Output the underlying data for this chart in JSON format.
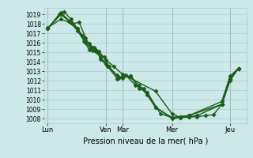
{
  "xlabel": "Pression niveau de la mer( hPa )",
  "ylim": [
    1007.5,
    1019.7
  ],
  "yticks": [
    1008,
    1009,
    1010,
    1011,
    1012,
    1013,
    1014,
    1015,
    1016,
    1017,
    1018,
    1019
  ],
  "background_color": "#cce8e8",
  "grid_color": "#aacccc",
  "line_color": "#1a5c1a",
  "x_day_labels": [
    "Lun",
    "Ven",
    "Mar",
    "Mer",
    "Jeu"
  ],
  "x_day_positions": [
    0.0,
    3.5,
    4.5,
    7.5,
    11.0
  ],
  "series": [
    [
      1017.5,
      1019.0,
      1018.3,
      1017.3,
      1016.2,
      1015.3,
      1015.1,
      1014.5,
      1013.8,
      1012.2,
      1012.4,
      1012.5,
      1011.5,
      1010.5,
      1009.2,
      1008.0,
      1008.1,
      1008.15,
      1008.2,
      1008.3,
      1008.4,
      1009.5,
      1012.2,
      1013.3
    ],
    [
      1017.5,
      1019.2,
      1018.0,
      1018.2,
      1016.5,
      1015.5,
      1015.3,
      1014.3,
      1013.5,
      1012.6,
      1012.3,
      1012.5,
      1011.2,
      1010.8,
      1008.5,
      1008.1,
      1008.2,
      1008.3,
      1009.5,
      1012.2,
      1013.3
    ],
    [
      1017.6,
      1018.5,
      1018.1,
      1017.5,
      1016.0,
      1015.2,
      1015.0,
      1014.5,
      1013.5,
      1012.3,
      1012.6,
      1011.5,
      1011.2,
      1009.2,
      1008.1,
      1008.2,
      1008.3,
      1009.8,
      1012.5,
      1013.3
    ],
    [
      1017.5,
      1019.0,
      1019.3,
      1018.5,
      1017.5,
      1016.8,
      1015.9,
      1015.5,
      1015.1,
      1014.2,
      1013.5,
      1012.7,
      1010.9,
      1008.5,
      1008.1,
      1008.2,
      1008.3,
      1009.5,
      1012.0,
      1013.3
    ]
  ],
  "x_positions": [
    [
      0.0,
      0.8,
      1.3,
      1.8,
      2.2,
      2.5,
      2.9,
      3.2,
      3.5,
      4.2,
      4.5,
      5.0,
      5.5,
      6.0,
      6.5,
      7.5,
      8.0,
      8.5,
      9.0,
      9.5,
      10.0,
      10.5,
      11.0,
      11.5
    ],
    [
      0.0,
      0.8,
      1.5,
      1.9,
      2.3,
      2.6,
      2.9,
      3.2,
      3.6,
      4.2,
      4.5,
      5.0,
      5.5,
      6.0,
      6.8,
      7.5,
      8.0,
      8.5,
      10.5,
      11.0,
      11.5
    ],
    [
      0.0,
      0.8,
      1.4,
      1.8,
      2.3,
      2.7,
      3.0,
      3.4,
      3.7,
      4.3,
      4.7,
      5.3,
      5.8,
      6.5,
      7.5,
      8.0,
      8.5,
      10.5,
      11.0,
      11.5
    ],
    [
      0.0,
      0.7,
      1.0,
      1.4,
      1.8,
      2.1,
      2.5,
      2.8,
      3.1,
      3.5,
      4.0,
      4.5,
      6.5,
      7.5,
      8.0,
      8.5,
      9.0,
      10.5,
      11.0,
      11.5
    ]
  ],
  "xlim": [
    -0.2,
    12.0
  ],
  "marker": "D",
  "markersize": 2.5,
  "linewidth": 1.0
}
